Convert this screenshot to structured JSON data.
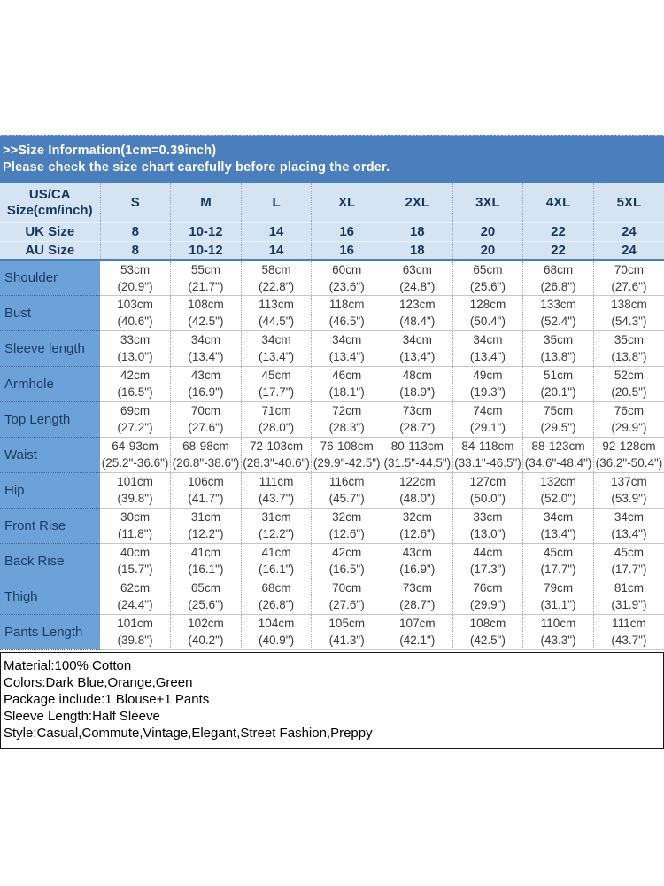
{
  "banner": {
    "line1": ">>Size Information(1cm=0.39inch)",
    "line2": "Please check the size chart carefully before placing the order."
  },
  "size_chart": {
    "corner": {
      "line1": "US/CA",
      "line2": "Size(cm/inch)"
    },
    "sizes": [
      "S",
      "M",
      "L",
      "XL",
      "2XL",
      "3XL",
      "4XL",
      "5XL"
    ],
    "uk": {
      "label": "UK Size",
      "values": [
        "8",
        "10-12",
        "14",
        "16",
        "18",
        "20",
        "22",
        "24"
      ]
    },
    "au": {
      "label": "AU Size",
      "values": [
        "8",
        "10-12",
        "14",
        "16",
        "18",
        "20",
        "22",
        "24"
      ]
    },
    "measurements": [
      {
        "label": "Shoulder",
        "values": [
          "53cm\n(20.9\")",
          "55cm\n(21.7\")",
          "58cm\n(22.8\")",
          "60cm\n(23.6\")",
          "63cm\n(24.8\")",
          "65cm\n(25.6\")",
          "68cm\n(26.8\")",
          "70cm\n(27.6\")"
        ]
      },
      {
        "label": "Bust",
        "values": [
          "103cm\n(40.6\")",
          "108cm\n(42.5\")",
          "113cm\n(44.5\")",
          "118cm\n(46.5\")",
          "123cm\n(48.4\")",
          "128cm\n(50.4\")",
          "133cm\n(52.4\")",
          "138cm\n(54.3\")"
        ]
      },
      {
        "label": "Sleeve length",
        "values": [
          "33cm\n(13.0\")",
          "34cm\n(13.4\")",
          "34cm\n(13.4\")",
          "34cm\n(13.4\")",
          "34cm\n(13.4\")",
          "34cm\n(13.4\")",
          "35cm\n(13.8\")",
          "35cm\n(13.8\")"
        ]
      },
      {
        "label": "Armhole",
        "values": [
          "42cm\n(16.5\")",
          "43cm\n(16.9\")",
          "45cm\n(17.7\")",
          "46cm\n(18.1\")",
          "48cm\n(18.9\")",
          "49cm\n(19.3\")",
          "51cm\n(20.1\")",
          "52cm\n(20.5\")"
        ]
      },
      {
        "label": "Top Length",
        "values": [
          "69cm\n(27.2\")",
          "70cm\n(27.6\")",
          "71cm\n(28.0\")",
          "72cm\n(28.3\")",
          "73cm\n(28.7\")",
          "74cm\n(29.1\")",
          "75cm\n(29.5\")",
          "76cm\n(29.9\")"
        ]
      },
      {
        "label": "Waist",
        "values": [
          "64-93cm\n(25.2\"-36.6\")",
          "68-98cm\n(26.8\"-38.6\")",
          "72-103cm\n(28.3\"-40.6\")",
          "76-108cm\n(29.9\"-42.5\")",
          "80-113cm\n(31.5\"-44.5\")",
          "84-118cm\n(33.1\"-46.5\")",
          "88-123cm\n(34.6\"-48.4\")",
          "92-128cm\n(36.2\"-50.4\")"
        ]
      },
      {
        "label": "Hip",
        "values": [
          "101cm\n(39.8\")",
          "106cm\n(41.7\")",
          "111cm\n(43.7\")",
          "116cm\n(45.7\")",
          "122cm\n(48.0\")",
          "127cm\n(50.0\")",
          "132cm\n(52.0\")",
          "137cm\n(53.9\")"
        ]
      },
      {
        "label": "Front Rise",
        "values": [
          "30cm\n(11.8\")",
          "31cm\n(12.2\")",
          "31cm\n(12.2\")",
          "32cm\n(12.6\")",
          "32cm\n(12.6\")",
          "33cm\n(13.0\")",
          "34cm\n(13.4\")",
          "34cm\n(13.4\")"
        ]
      },
      {
        "label": "Back Rise",
        "values": [
          "40cm\n(15.7\")",
          "41cm\n(16.1\")",
          "41cm\n(16.1\")",
          "42cm\n(16.5\")",
          "43cm\n(16.9\")",
          "44cm\n(17.3\")",
          "45cm\n(17.7\")",
          "45cm\n(17.7\")"
        ]
      },
      {
        "label": "Thigh",
        "values": [
          "62cm\n(24.4\")",
          "65cm\n(25.6\")",
          "68cm\n(26.8\")",
          "70cm\n(27.6\")",
          "73cm\n(28.7\")",
          "76cm\n(29.9\")",
          "79cm\n(31.1\")",
          "81cm\n(31.9\")"
        ]
      },
      {
        "label": "Pants Length",
        "values": [
          "101cm\n(39.8\")",
          "102cm\n(40.2\")",
          "104cm\n(40.9\")",
          "105cm\n(41.3\")",
          "107cm\n(42.1\")",
          "108cm\n(42.5\")",
          "110cm\n(43.3\")",
          "111cm\n(43.7\")"
        ]
      }
    ]
  },
  "details": {
    "lines": [
      "Material:100% Cotton",
      "Colors:Dark Blue,Orange,Green",
      "Package include:1 Blouse+1 Pants",
      "Sleeve Length:Half Sleeve",
      "Style:Casual,Commute,Vintage,Elegant,Street Fashion,Preppy"
    ]
  },
  "colors": {
    "banner_bg": "#4a7ebd",
    "header_bg": "#d5e4f2",
    "label_column_bg": "#6ca2d8",
    "header_text": "#17375d",
    "data_text": "#3a3a3a",
    "divider_blue": "#4a7ebd"
  }
}
